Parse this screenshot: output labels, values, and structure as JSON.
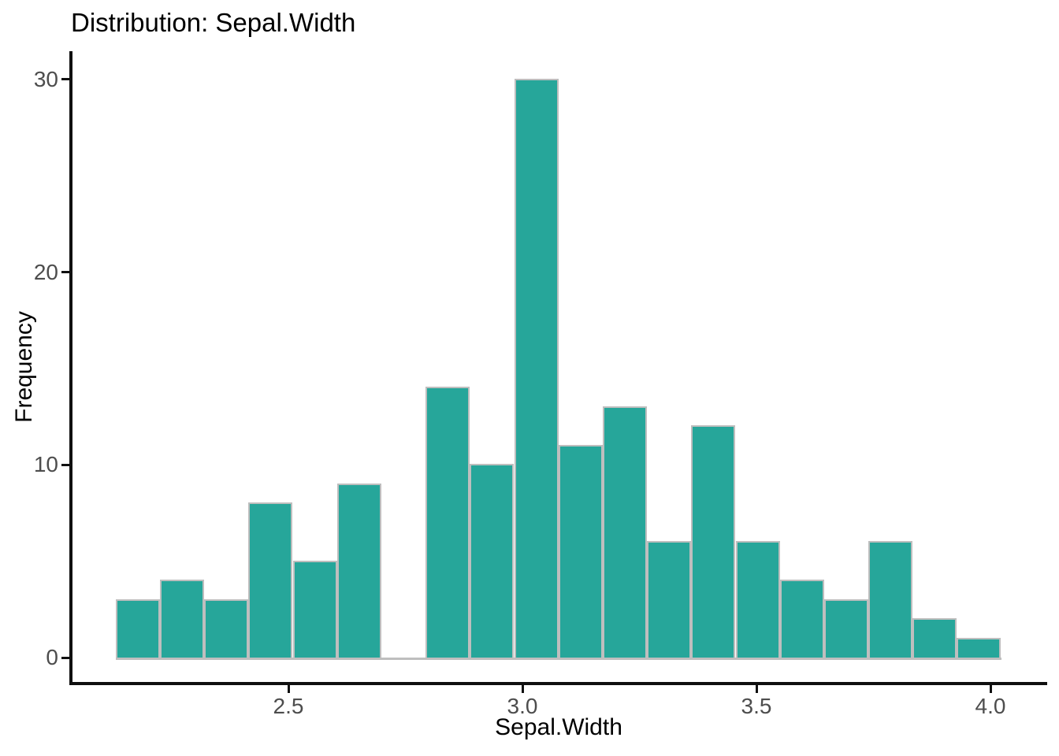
{
  "chart": {
    "title": "Distribution: Sepal.Width",
    "xlabel": "Sepal.Width",
    "ylabel": "Frequency"
  },
  "chart_data": {
    "type": "bar",
    "subtype": "histogram",
    "title": "Distribution: Sepal.Width",
    "xlabel": "Sepal.Width",
    "ylabel": "Frequency",
    "bin_start": 2.131,
    "bin_width": 0.0946,
    "counts": [
      3,
      4,
      3,
      8,
      5,
      9,
      0,
      14,
      10,
      30,
      11,
      13,
      6,
      12,
      6,
      4,
      3,
      6,
      2,
      1
    ],
    "total_count": 150,
    "x_ticks": [
      2.5,
      3.0,
      3.5,
      4.0
    ],
    "x_tick_labels": [
      "2.5",
      "3.0",
      "3.5",
      "4.0"
    ],
    "y_ticks": [
      0,
      10,
      20,
      30
    ],
    "y_tick_labels": [
      "0",
      "10",
      "20",
      "30"
    ],
    "xlim": [
      2.03,
      4.12
    ],
    "ylim": [
      0,
      31.5
    ],
    "grid": false,
    "legend": null,
    "colors": {
      "bar_fill": "#26a69a",
      "bar_border": "#bebebe",
      "axis_line": "#101010",
      "tick_label": "#4d4d4d",
      "title_text": "#000000",
      "background": "#ffffff"
    }
  }
}
